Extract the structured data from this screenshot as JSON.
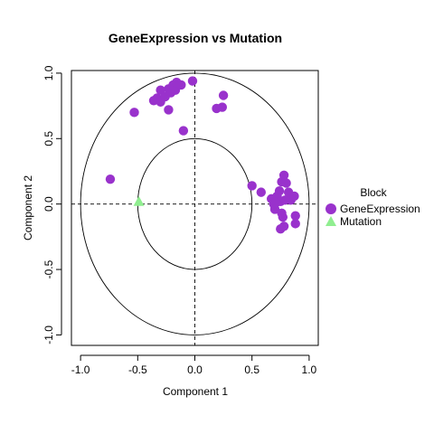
{
  "chart_data": {
    "type": "scatter",
    "title": "GeneExpression vs Mutation",
    "xlabel": "Component 1",
    "ylabel": "Component 2",
    "xlim": [
      -1.08,
      1.08
    ],
    "ylim": [
      -1.08,
      1.02
    ],
    "xticks": [
      -1.0,
      -0.5,
      0.0,
      0.5,
      1.0
    ],
    "xtick_labels": [
      "-1.0",
      "-0.5",
      "0.0",
      "0.5",
      "1.0"
    ],
    "yticks": [
      -1.0,
      -0.5,
      0.0,
      0.5,
      1.0
    ],
    "ytick_labels": [
      "-1.0",
      "-0.5",
      "0.0",
      "0.5",
      "1.0"
    ],
    "circles": [
      1.0,
      0.5
    ],
    "reference_lines": {
      "x": 0,
      "y": 0,
      "style": "dashed"
    },
    "legend": {
      "title": "Block",
      "placement": "right"
    },
    "series": [
      {
        "name": "GeneExpression",
        "marker": "circle",
        "color": "#9932cc",
        "points": [
          [
            -0.74,
            0.19
          ],
          [
            -0.53,
            0.7
          ],
          [
            -0.36,
            0.79
          ],
          [
            -0.33,
            0.81
          ],
          [
            -0.3,
            0.78
          ],
          [
            -0.3,
            0.87
          ],
          [
            -0.26,
            0.82
          ],
          [
            -0.23,
            0.88
          ],
          [
            -0.21,
            0.85
          ],
          [
            -0.19,
            0.91
          ],
          [
            -0.17,
            0.87
          ],
          [
            -0.16,
            0.93
          ],
          [
            -0.12,
            0.91
          ],
          [
            -0.23,
            0.72
          ],
          [
            -0.1,
            0.56
          ],
          [
            -0.02,
            0.94
          ],
          [
            0.19,
            0.73
          ],
          [
            0.24,
            0.74
          ],
          [
            0.25,
            0.83
          ],
          [
            0.5,
            0.14
          ],
          [
            0.58,
            0.09
          ],
          [
            0.67,
            0.04
          ],
          [
            0.69,
            0.0
          ],
          [
            0.7,
            -0.04
          ],
          [
            0.72,
            0.06
          ],
          [
            0.74,
            0.1
          ],
          [
            0.75,
            0.02
          ],
          [
            0.76,
            0.17
          ],
          [
            0.78,
            0.22
          ],
          [
            0.76,
            -0.07
          ],
          [
            0.77,
            -0.1
          ],
          [
            0.8,
            0.16
          ],
          [
            0.82,
            0.09
          ],
          [
            0.84,
            0.03
          ],
          [
            0.87,
            0.06
          ],
          [
            0.75,
            -0.19
          ],
          [
            0.78,
            -0.17
          ],
          [
            0.88,
            -0.09
          ],
          [
            0.88,
            -0.15
          ],
          [
            0.79,
            0.03
          ],
          [
            0.71,
            0.01
          ]
        ]
      },
      {
        "name": "Mutation",
        "marker": "triangle",
        "color": "#90ee90",
        "points": [
          [
            -0.49,
            0.02
          ]
        ]
      }
    ]
  }
}
